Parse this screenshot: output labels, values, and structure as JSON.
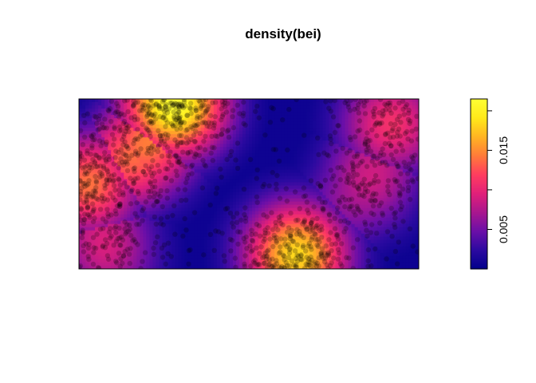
{
  "chart_data": {
    "type": "heatmap",
    "title": "density(bei)",
    "xlabel": "",
    "ylabel": "",
    "palette": [
      "#00008B",
      "#2B0AA0",
      "#6A0FA8",
      "#A8178F",
      "#E0207A",
      "#FF3C60",
      "#FF7A3A",
      "#FFB323",
      "#FFE81A",
      "#FFFF33"
    ],
    "point_color": "#000000",
    "colorbar": {
      "min": 0.0,
      "max": 0.0215,
      "ticks": [
        0.005,
        0.01,
        0.015,
        0.02
      ],
      "tick_labels": [
        "0.005",
        "",
        "0.015",
        ""
      ]
    },
    "density_modes": [
      {
        "x": 0.28,
        "y": 0.97,
        "value": 0.0215
      },
      {
        "x": 0.64,
        "y": 0.08,
        "value": 0.0185
      },
      {
        "x": 0.03,
        "y": 0.5,
        "value": 0.014
      },
      {
        "x": 0.18,
        "y": 0.68,
        "value": 0.012
      },
      {
        "x": 0.92,
        "y": 0.85,
        "value": 0.011
      },
      {
        "x": 0.85,
        "y": 0.5,
        "value": 0.008
      },
      {
        "x": 0.08,
        "y": 0.1,
        "value": 0.0085
      }
    ]
  }
}
